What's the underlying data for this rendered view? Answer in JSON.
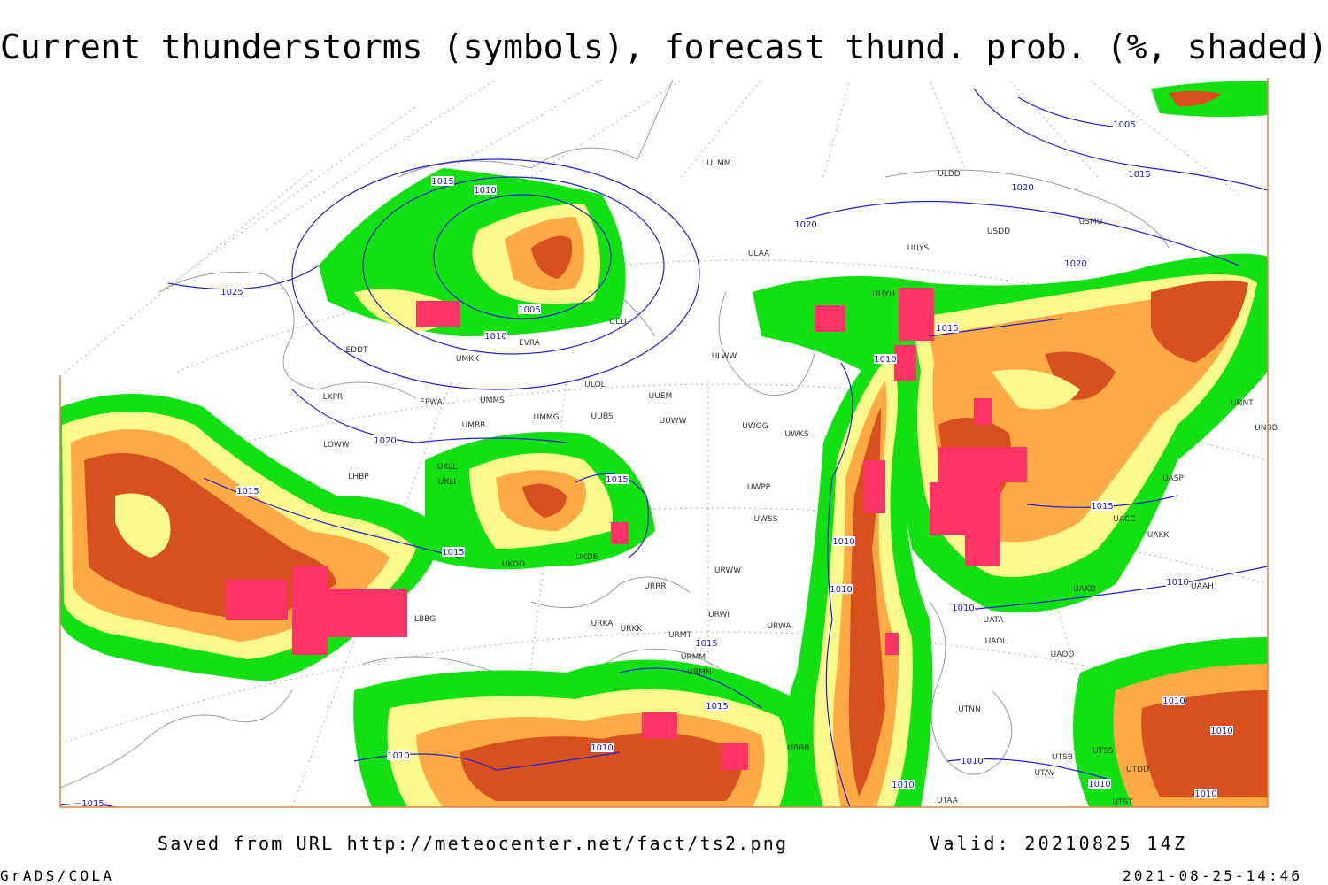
{
  "title": "Current thunderstorms (symbols), forecast thund. prob. (%, shaded)",
  "footer": {
    "source": "Saved from URL  http://meteocenter.net/fact/ts2.png",
    "valid": "Valid: 20210825 14Z",
    "software": "GrADS/COLA",
    "timestamp": "2021-08-25-14:46"
  },
  "map": {
    "isobar_labels": [
      1015,
      1010,
      1005,
      1015,
      1020,
      1020,
      1025,
      1005,
      1010,
      1015,
      1010,
      1020,
      1020,
      1015,
      1015,
      1015,
      1015,
      1010,
      1010,
      1010,
      1010,
      1015,
      1015,
      1010,
      1010,
      1010,
      1010,
      1010,
      1010,
      1010,
      1010,
      1015
    ],
    "station_labels": [
      "ULMM",
      "ULDD",
      "USDD",
      "USMU",
      "ULAA",
      "UUYS",
      "UUYH",
      "ULWW",
      "UUEM",
      "UUWW",
      "UWGG",
      "UWKS",
      "UWPP",
      "UWSS",
      "URWW",
      "URWI",
      "URWA",
      "UKOO",
      "URRR",
      "UKDE",
      "ULLI",
      "ULOL",
      "UMMS",
      "UMMG",
      "UUBS",
      "UMBB",
      "EPWA",
      "LKPR",
      "LOWW",
      "LHBP",
      "UKLI",
      "UKLL",
      "EDDT",
      "UMKK",
      "EVRA",
      "UACC",
      "UAKK",
      "UASP",
      "UNNT",
      "UNBB",
      "UAOL",
      "UAOO",
      "UTNN",
      "UTSB",
      "UTSS",
      "UTAV",
      "UTST",
      "UTDD",
      "UTAA",
      "UATA",
      "UAKD",
      "UAAH",
      "LBBG",
      "URKA",
      "URKK",
      "URMT",
      "URMM",
      "URMN",
      "UBBB"
    ]
  }
}
